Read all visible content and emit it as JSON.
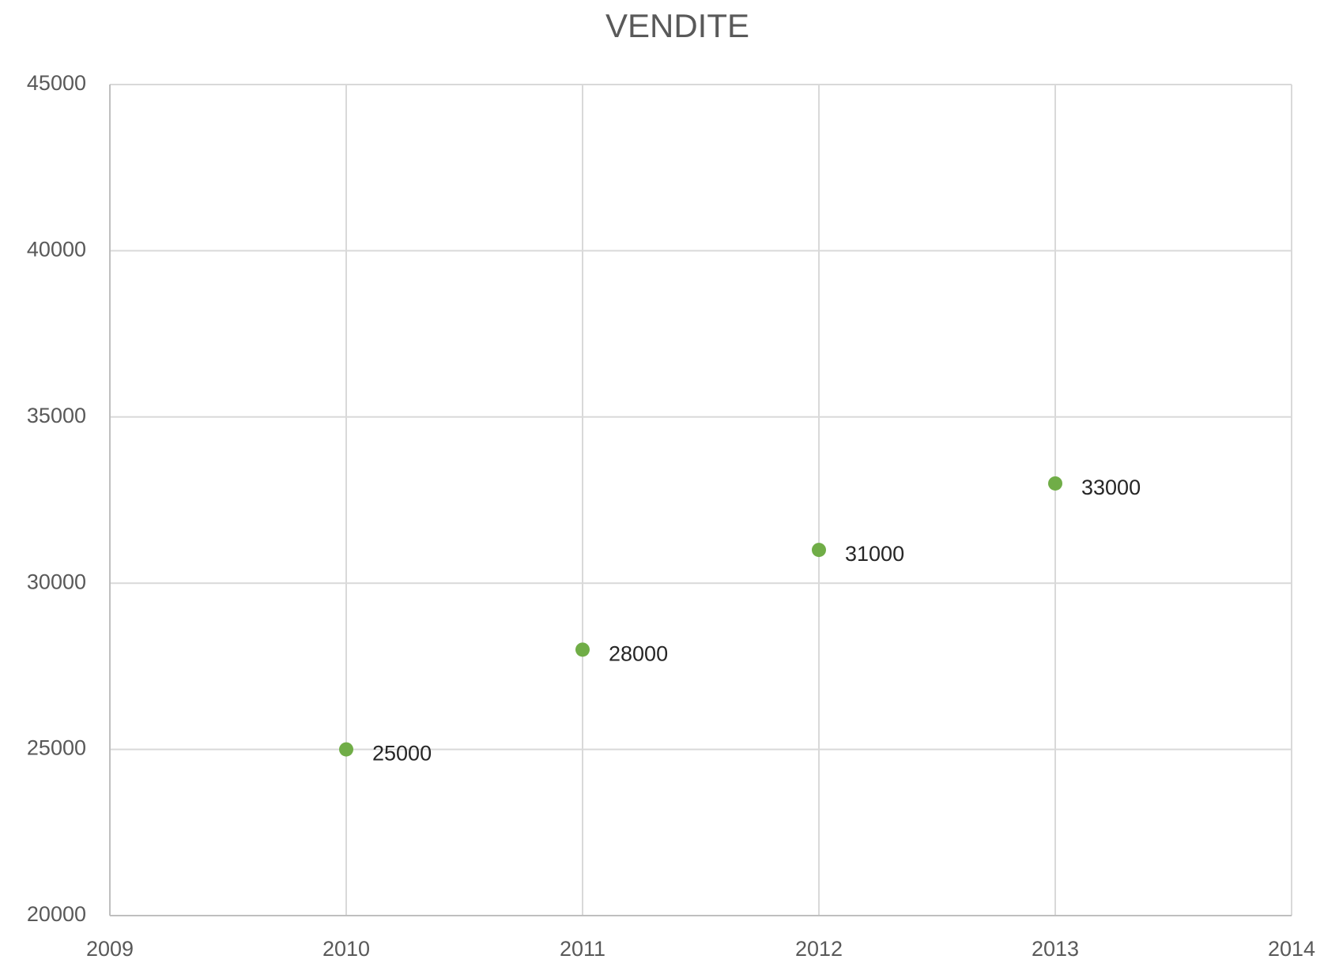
{
  "chart_data": {
    "type": "scatter",
    "title": "VENDITE",
    "series": [
      {
        "name": "VENDITE",
        "color": "#70ad47",
        "x": [
          2010,
          2011,
          2012,
          2013
        ],
        "values": [
          25000,
          28000,
          31000,
          33000
        ]
      }
    ],
    "xlim": [
      2009,
      2014
    ],
    "xticks": [
      2009,
      2010,
      2011,
      2012,
      2013,
      2014
    ],
    "ylim": [
      20000,
      45000
    ],
    "yticks": [
      20000,
      25000,
      30000,
      35000,
      40000,
      45000
    ],
    "grid": true,
    "data_labels": true
  }
}
